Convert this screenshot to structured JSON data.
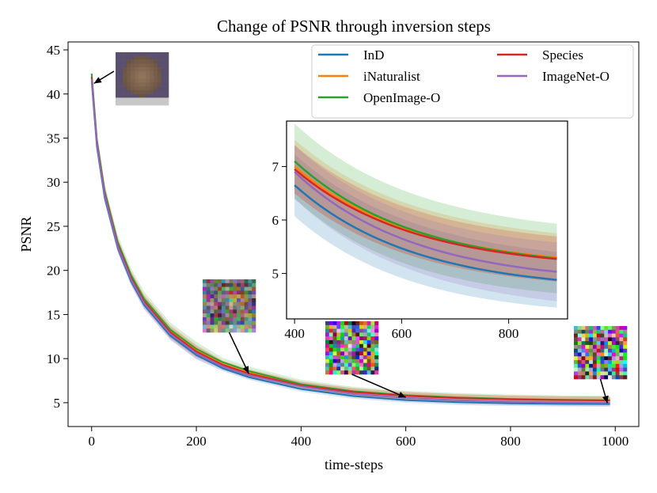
{
  "chart_data": {
    "type": "line",
    "title": "Change of PSNR through inversion steps",
    "xlabel": "time-steps",
    "ylabel": "PSNR",
    "xlim": [
      -45,
      1045
    ],
    "ylim": [
      2.3,
      45.9
    ],
    "xticks": [
      0,
      200,
      400,
      600,
      800,
      1000
    ],
    "yticks": [
      5,
      10,
      15,
      20,
      25,
      30,
      35,
      40,
      45
    ],
    "grid": false,
    "legend": {
      "placement": "top-right",
      "columns": 2,
      "entries": [
        "InD",
        "iNaturalist",
        "OpenImage-O",
        "Species",
        "ImageNet-O"
      ]
    },
    "series": [
      {
        "name": "InD",
        "color": "#1f77b4",
        "band": 0.3,
        "x": [
          0,
          10,
          25,
          50,
          75,
          100,
          150,
          200,
          250,
          300,
          400,
          500,
          600,
          700,
          800,
          900,
          990
        ],
        "y": [
          41.4,
          34.0,
          28.2,
          22.5,
          18.8,
          16.1,
          12.6,
          10.4,
          8.9,
          7.9,
          6.55,
          5.75,
          5.3,
          5.05,
          4.93,
          4.87,
          4.85
        ]
      },
      {
        "name": "iNaturalist",
        "color": "#ff7f0e",
        "band": 0.42,
        "x": [
          0,
          10,
          25,
          50,
          75,
          100,
          150,
          200,
          250,
          300,
          400,
          500,
          600,
          700,
          800,
          900,
          990
        ],
        "y": [
          42.0,
          34.6,
          28.8,
          23.0,
          19.3,
          16.6,
          13.1,
          10.9,
          9.4,
          8.4,
          7.0,
          6.25,
          5.8,
          5.55,
          5.4,
          5.32,
          5.28
        ]
      },
      {
        "name": "OpenImage-O",
        "color": "#2ca02c",
        "band": 0.5,
        "x": [
          0,
          10,
          25,
          50,
          75,
          100,
          150,
          200,
          250,
          300,
          400,
          500,
          600,
          700,
          800,
          900,
          990
        ],
        "y": [
          42.3,
          34.8,
          29.0,
          23.2,
          19.5,
          16.8,
          13.3,
          11.1,
          9.6,
          8.6,
          7.1,
          6.3,
          5.85,
          5.6,
          5.43,
          5.33,
          5.28
        ]
      },
      {
        "name": "Species",
        "color": "#d62728",
        "band": 0.42,
        "x": [
          0,
          10,
          25,
          50,
          75,
          100,
          150,
          200,
          250,
          300,
          400,
          500,
          600,
          700,
          800,
          900,
          990
        ],
        "y": [
          41.9,
          34.5,
          28.7,
          22.9,
          19.2,
          16.5,
          13.0,
          10.8,
          9.3,
          8.3,
          6.95,
          6.2,
          5.77,
          5.52,
          5.38,
          5.3,
          5.26
        ]
      },
      {
        "name": "ImageNet-O",
        "color": "#9467bd",
        "band": 0.4,
        "x": [
          0,
          10,
          25,
          50,
          75,
          100,
          150,
          200,
          250,
          300,
          400,
          500,
          600,
          700,
          800,
          900,
          990
        ],
        "y": [
          41.7,
          34.3,
          28.5,
          22.7,
          19.0,
          16.3,
          12.8,
          10.6,
          9.1,
          8.1,
          6.85,
          6.0,
          5.55,
          5.28,
          5.12,
          5.04,
          5.0
        ]
      }
    ],
    "inset": {
      "xlim": [
        385,
        910
      ],
      "ylim": [
        4.15,
        7.85
      ],
      "xticks": [
        400,
        600,
        800
      ],
      "yticks": [
        5,
        6,
        7
      ],
      "x_range": [
        400,
        890
      ],
      "series": [
        {
          "name": "InD",
          "y_start": 6.65,
          "y_end": 4.88,
          "band_start": 0.58,
          "band_end": 0.52
        },
        {
          "name": "iNaturalist",
          "y_start": 7.0,
          "y_end": 5.3,
          "band_start": 0.5,
          "band_end": 0.45
        },
        {
          "name": "OpenImage-O",
          "y_start": 7.1,
          "y_end": 5.28,
          "band_start": 0.7,
          "band_end": 0.65
        },
        {
          "name": "Species",
          "y_start": 6.95,
          "y_end": 5.27,
          "band_start": 0.45,
          "band_end": 0.42
        },
        {
          "name": "ImageNet-O",
          "y_start": 6.9,
          "y_end": 5.03,
          "band_start": 0.5,
          "band_end": 0.55
        }
      ]
    },
    "thumbnails": [
      {
        "name": "step-0",
        "x": 0,
        "y": 41.4,
        "noise": 0.0
      },
      {
        "name": "step-300",
        "x": 300,
        "y": 8.3,
        "noise": 0.55
      },
      {
        "name": "step-600",
        "x": 600,
        "y": 5.6,
        "noise": 1.0
      },
      {
        "name": "step-990",
        "x": 985,
        "y": 4.9,
        "noise": 1.0
      }
    ]
  }
}
